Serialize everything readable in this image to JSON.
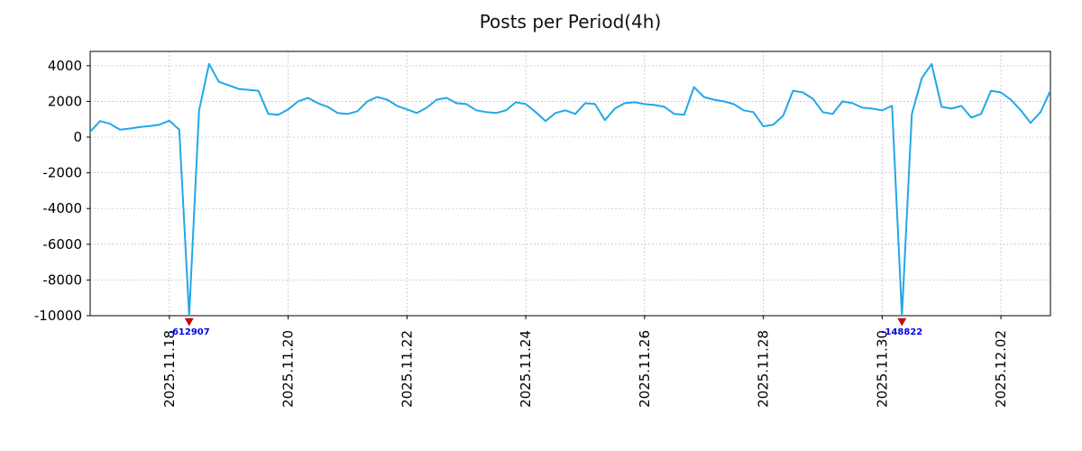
{
  "page": {
    "title": "Posts per Period(4h)"
  },
  "chart_data": {
    "type": "line",
    "title": "Posts per Period(4h)",
    "series_name": "posts-per-4h",
    "interval": "4h",
    "line_color": "#22a7e8",
    "grid": true,
    "legend": false,
    "ylim": [
      -10000,
      4800
    ],
    "y_ticks": [
      4000,
      2000,
      0,
      -2000,
      -4000,
      -6000,
      -8000,
      -10000
    ],
    "x_ticks": [
      {
        "index": 8,
        "label": "2025.11.18"
      },
      {
        "index": 20,
        "label": "2025.11.20"
      },
      {
        "index": 32,
        "label": "2025.11.22"
      },
      {
        "index": 44,
        "label": "2025.11.24"
      },
      {
        "index": 56,
        "label": "2025.11.26"
      },
      {
        "index": 68,
        "label": "2025.11.28"
      },
      {
        "index": 80,
        "label": "2025.11.30"
      },
      {
        "index": 92,
        "label": "2025.12.02"
      }
    ],
    "values": [
      300,
      900,
      750,
      420,
      480,
      560,
      620,
      700,
      920,
      420,
      -612907,
      1500,
      4100,
      3100,
      2900,
      2700,
      2650,
      2600,
      1300,
      1250,
      1550,
      2000,
      2200,
      1900,
      1700,
      1350,
      1300,
      1450,
      2000,
      2250,
      2100,
      1750,
      1550,
      1350,
      1650,
      2100,
      2200,
      1900,
      1850,
      1500,
      1400,
      1350,
      1500,
      1950,
      1850,
      1400,
      900,
      1350,
      1500,
      1300,
      1900,
      1850,
      950,
      1600,
      1900,
      1950,
      1850,
      1800,
      1700,
      1300,
      1250,
      2800,
      2250,
      2100,
      2000,
      1850,
      1500,
      1400,
      600,
      700,
      1200,
      2600,
      2500,
      2150,
      1400,
      1300,
      2000,
      1900,
      1650,
      1600,
      1500,
      1750,
      -148822,
      1300,
      3300,
      4100,
      1700,
      1600,
      1750,
      1100,
      1300,
      2600,
      2500,
      2100,
      1500,
      800,
      1400,
      2600
    ],
    "annotations": [
      {
        "index": 10,
        "label": "-612907",
        "value": -612907,
        "arrow_color": "#dd0000",
        "text_color": "#0000ee"
      },
      {
        "index": 82,
        "label": "-148822",
        "value": -148822,
        "arrow_color": "#dd0000",
        "text_color": "#0000ee"
      }
    ]
  }
}
